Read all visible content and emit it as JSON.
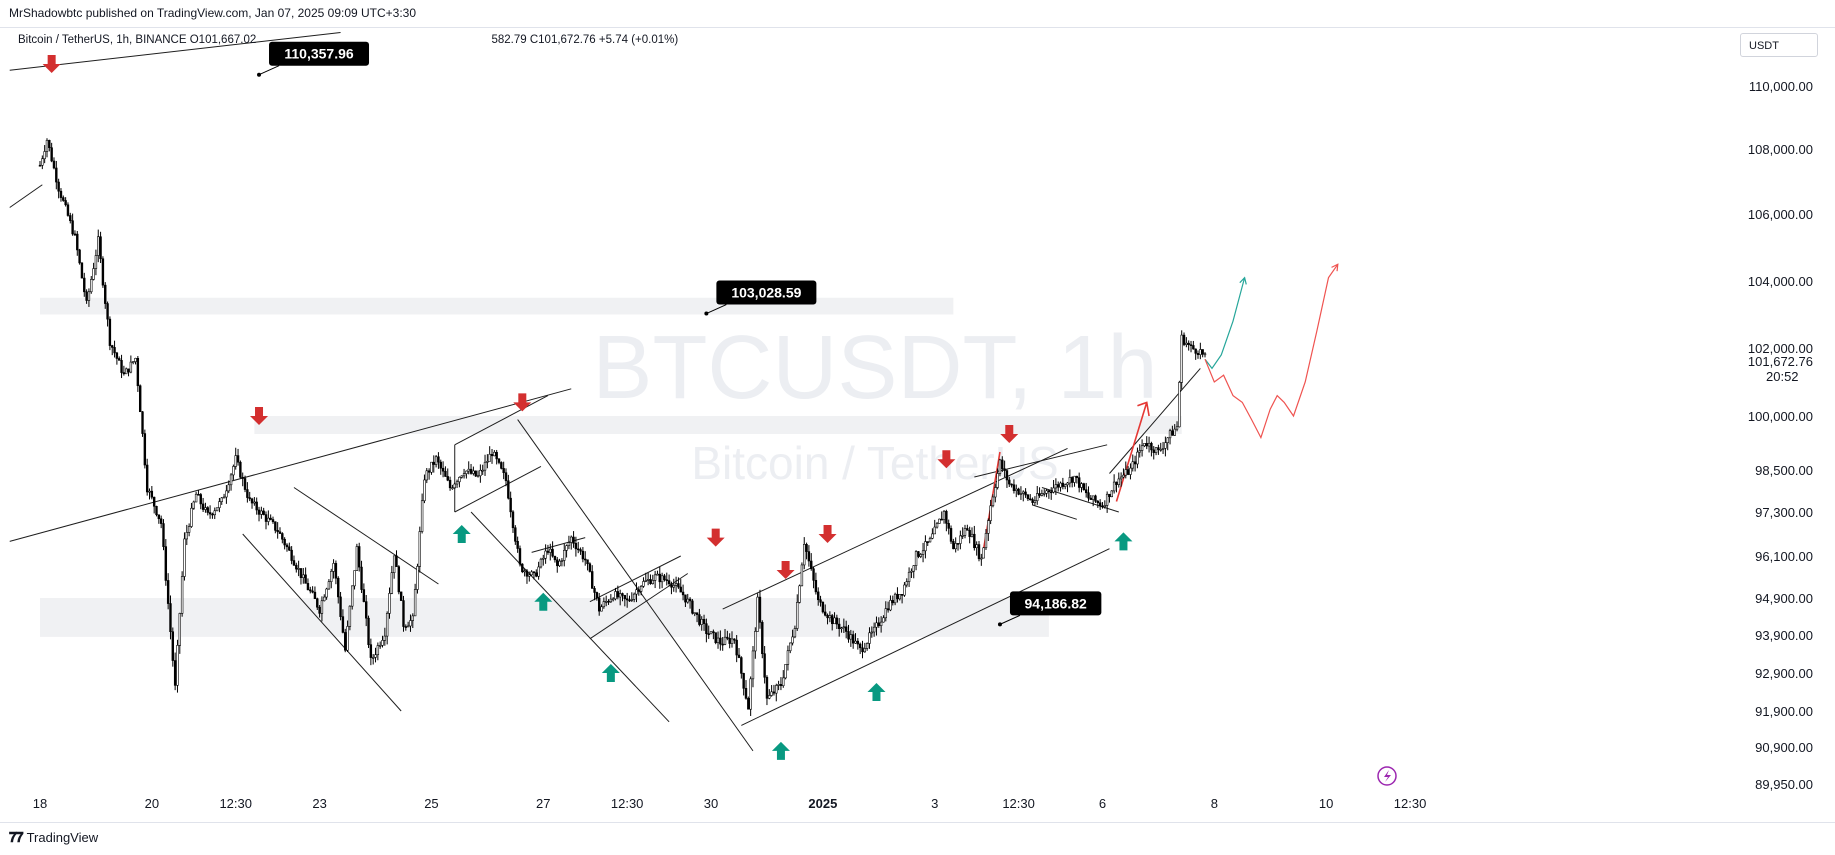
{
  "header": {
    "published": "MrShadowbtc published on TradingView.com, Jan 07, 2025 09:09 UTC+3:30"
  },
  "legend": {
    "symbol": "Bitcoin / TetherUS, 1h, BINANCE",
    "open": "O101,667.02",
    "rest": "582.79",
    "close": "C101,672.76",
    "change": "+5.74 (+0.01%)"
  },
  "currency": "USDT",
  "watermark": {
    "line1": "BTCUSDT, 1h",
    "line2": "Bitcoin / TetherUS"
  },
  "footer": {
    "brand": "TradingView"
  },
  "colors": {
    "bull_arrow": "#089981",
    "bear_arrow": "#d32f2f",
    "projection_green": "#26a69a",
    "projection_red": "#ef5350",
    "zone": "#f0f1f3"
  },
  "icons": [
    "alert-icon"
  ],
  "chart_data": {
    "type": "candlestick",
    "title": "BTCUSDT, 1h",
    "ylim": [
      89500,
      111500
    ],
    "y_ticks": [
      110000,
      108000,
      106000,
      104000,
      102000,
      100000,
      98500,
      97300,
      96100,
      94900,
      93900,
      92900,
      91900,
      90900,
      89950
    ],
    "y_tick_labels": [
      "110,000.00",
      "108,000.00",
      "106,000.00",
      "104,000.00",
      "102,000.00",
      "100,000.00",
      "98,500.00",
      "97,300.00",
      "96,100.00",
      "94,900.00",
      "93,900.00",
      "92,900.00",
      "91,900.00",
      "90,900.00",
      "89,950.00"
    ],
    "x_ticks": [
      {
        "label": "18",
        "t": 0
      },
      {
        "label": "20",
        "t": 48
      },
      {
        "label": "12:30",
        "t": 84
      },
      {
        "label": "23",
        "t": 120
      },
      {
        "label": "25",
        "t": 168
      },
      {
        "label": "27",
        "t": 216
      },
      {
        "label": "12:30",
        "t": 252
      },
      {
        "label": "30",
        "t": 288
      },
      {
        "label": "2025",
        "t": 336,
        "bold": true
      },
      {
        "label": "3",
        "t": 384
      },
      {
        "label": "12:30",
        "t": 420
      },
      {
        "label": "6",
        "t": 456
      },
      {
        "label": "8",
        "t": 504
      },
      {
        "label": "10",
        "t": 552
      },
      {
        "label": "12:30",
        "t": 588
      }
    ],
    "last_price": "101,672.76",
    "countdown": "20:52",
    "price_anchors": [
      [
        0,
        107500
      ],
      [
        3,
        108300
      ],
      [
        8,
        106800
      ],
      [
        15,
        105300
      ],
      [
        20,
        103300
      ],
      [
        25,
        105200
      ],
      [
        30,
        102200
      ],
      [
        36,
        101200
      ],
      [
        41,
        101700
      ],
      [
        46,
        98000
      ],
      [
        52,
        97000
      ],
      [
        58,
        92500
      ],
      [
        62,
        96500
      ],
      [
        67,
        97800
      ],
      [
        72,
        97200
      ],
      [
        78,
        97600
      ],
      [
        84,
        98800
      ],
      [
        90,
        97600
      ],
      [
        96,
        97200
      ],
      [
        102,
        96800
      ],
      [
        108,
        96100
      ],
      [
        114,
        95300
      ],
      [
        120,
        94600
      ],
      [
        126,
        95900
      ],
      [
        131,
        93500
      ],
      [
        136,
        96300
      ],
      [
        142,
        93200
      ],
      [
        148,
        94000
      ],
      [
        152,
        96200
      ],
      [
        156,
        94200
      ],
      [
        160,
        94300
      ],
      [
        165,
        98300
      ],
      [
        170,
        98800
      ],
      [
        176,
        98000
      ],
      [
        182,
        98500
      ],
      [
        188,
        98300
      ],
      [
        194,
        99000
      ],
      [
        200,
        98200
      ],
      [
        206,
        95800
      ],
      [
        212,
        95500
      ],
      [
        218,
        96300
      ],
      [
        222,
        95800
      ],
      [
        228,
        96600
      ],
      [
        234,
        96000
      ],
      [
        240,
        94600
      ],
      [
        246,
        95000
      ],
      [
        252,
        94800
      ],
      [
        258,
        95300
      ],
      [
        264,
        95500
      ],
      [
        270,
        95400
      ],
      [
        276,
        95000
      ],
      [
        280,
        94600
      ],
      [
        286,
        94000
      ],
      [
        292,
        93700
      ],
      [
        298,
        93800
      ],
      [
        304,
        92000
      ],
      [
        308,
        94800
      ],
      [
        312,
        92200
      ],
      [
        318,
        92600
      ],
      [
        324,
        94200
      ],
      [
        328,
        96500
      ],
      [
        334,
        94800
      ],
      [
        340,
        94300
      ],
      [
        346,
        94000
      ],
      [
        352,
        93500
      ],
      [
        358,
        94000
      ],
      [
        364,
        94700
      ],
      [
        370,
        95100
      ],
      [
        376,
        96100
      ],
      [
        382,
        96500
      ],
      [
        388,
        97300
      ],
      [
        392,
        96300
      ],
      [
        398,
        96900
      ],
      [
        404,
        96000
      ],
      [
        408,
        97500
      ],
      [
        412,
        98700
      ],
      [
        416,
        98100
      ],
      [
        420,
        97900
      ],
      [
        426,
        97600
      ],
      [
        432,
        97900
      ],
      [
        438,
        98100
      ],
      [
        444,
        98300
      ],
      [
        450,
        97700
      ],
      [
        456,
        97500
      ],
      [
        462,
        98200
      ],
      [
        468,
        98500
      ],
      [
        474,
        99300
      ],
      [
        480,
        99000
      ],
      [
        484,
        99400
      ],
      [
        488,
        99700
      ],
      [
        490,
        102300
      ],
      [
        494,
        102000
      ],
      [
        498,
        101900
      ],
      [
        500,
        101700
      ]
    ],
    "projection_green": [
      [
        500,
        101670
      ],
      [
        503,
        101400
      ],
      [
        507,
        101800
      ],
      [
        512,
        102800
      ],
      [
        517,
        104100
      ]
    ],
    "projection_red": [
      [
        500,
        101670
      ],
      [
        504,
        101000
      ],
      [
        508,
        101200
      ],
      [
        512,
        100600
      ],
      [
        516,
        100400
      ],
      [
        520,
        99900
      ],
      [
        524,
        99400
      ],
      [
        528,
        100200
      ],
      [
        531,
        100600
      ],
      [
        534,
        100400
      ],
      [
        538,
        100000
      ],
      [
        543,
        101000
      ],
      [
        548,
        102500
      ],
      [
        553,
        104100
      ],
      [
        557,
        104500
      ]
    ],
    "price_tags": [
      {
        "label": "110,357.96",
        "t": 94,
        "price": 110357.96
      },
      {
        "label": "103,028.59",
        "t": 286,
        "price": 103028.59
      },
      {
        "label": "94,186.82",
        "t": 412,
        "price": 94186.82
      }
    ],
    "zones": [
      {
        "t0": 0,
        "t1": 392,
        "p_low": 103000,
        "p_high": 103500
      },
      {
        "t0": 92,
        "t1": 490,
        "p_low": 99500,
        "p_high": 100000
      },
      {
        "t0": 0,
        "t1": 433,
        "p_low": 93850,
        "p_high": 94900
      }
    ],
    "bear_arrows": [
      [
        5,
        110700
      ],
      [
        94,
        100000
      ],
      [
        207,
        100400
      ],
      [
        290,
        96600
      ],
      [
        320,
        95700
      ],
      [
        338,
        96700
      ],
      [
        389,
        98800
      ],
      [
        416,
        99500
      ]
    ],
    "bull_arrows": [
      [
        181,
        96700
      ],
      [
        216,
        94800
      ],
      [
        245,
        92900
      ],
      [
        318,
        90800
      ],
      [
        359,
        92400
      ],
      [
        465,
        96500
      ]
    ]
  }
}
